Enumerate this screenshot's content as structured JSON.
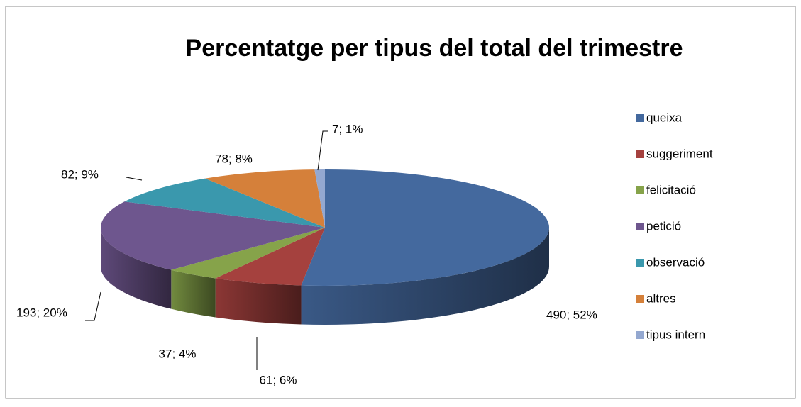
{
  "chart_data": {
    "type": "pie",
    "title": "Percentatge per tipus del total del trimestre",
    "categories": [
      "queixa",
      "suggeriment",
      "felicitació",
      "petició",
      "observació",
      "altres",
      "tipus intern"
    ],
    "values": [
      490,
      61,
      37,
      193,
      82,
      78,
      7
    ],
    "value_labels": [
      "490; 52%",
      "61; 6%",
      "37; 4%",
      "193; 20%",
      "82; 9%",
      "78; 8%",
      "7; 1%"
    ],
    "colors": [
      "#44699e",
      "#a5413e",
      "#86a34a",
      "#6e568e",
      "#3a98ad",
      "#d5803a",
      "#94a8d0"
    ],
    "legend": "right"
  }
}
